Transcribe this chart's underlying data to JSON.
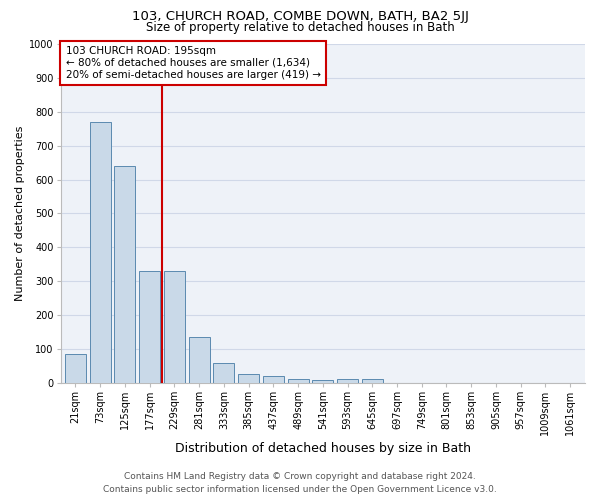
{
  "title1": "103, CHURCH ROAD, COMBE DOWN, BATH, BA2 5JJ",
  "title2": "Size of property relative to detached houses in Bath",
  "xlabel": "Distribution of detached houses by size in Bath",
  "ylabel": "Number of detached properties",
  "footer1": "Contains HM Land Registry data © Crown copyright and database right 2024.",
  "footer2": "Contains public sector information licensed under the Open Government Licence v3.0.",
  "annotation_line1": "103 CHURCH ROAD: 195sqm",
  "annotation_line2": "← 80% of detached houses are smaller (1,634)",
  "annotation_line3": "20% of semi-detached houses are larger (419) →",
  "bar_labels": [
    "21sqm",
    "73sqm",
    "125sqm",
    "177sqm",
    "229sqm",
    "281sqm",
    "333sqm",
    "385sqm",
    "437sqm",
    "489sqm",
    "541sqm",
    "593sqm",
    "645sqm",
    "697sqm",
    "749sqm",
    "801sqm",
    "853sqm",
    "905sqm",
    "957sqm",
    "1009sqm",
    "1061sqm"
  ],
  "bar_values": [
    85,
    770,
    640,
    330,
    330,
    135,
    60,
    25,
    20,
    12,
    8,
    10,
    10,
    0,
    0,
    0,
    0,
    0,
    0,
    0,
    0
  ],
  "bar_color": "#c9d9e8",
  "bar_edge_color": "#5a8ab0",
  "red_line_x": 3.5,
  "ylim": [
    0,
    1000
  ],
  "yticks": [
    0,
    100,
    200,
    300,
    400,
    500,
    600,
    700,
    800,
    900,
    1000
  ],
  "grid_color": "#d0d8e8",
  "bg_color": "#eef2f8",
  "annotation_box_edge": "#cc0000",
  "red_line_color": "#cc0000",
  "title1_fontsize": 9.5,
  "title2_fontsize": 8.5,
  "ylabel_fontsize": 8,
  "xlabel_fontsize": 9,
  "tick_fontsize": 7,
  "footer_fontsize": 6.5,
  "annotation_fontsize": 7.5
}
